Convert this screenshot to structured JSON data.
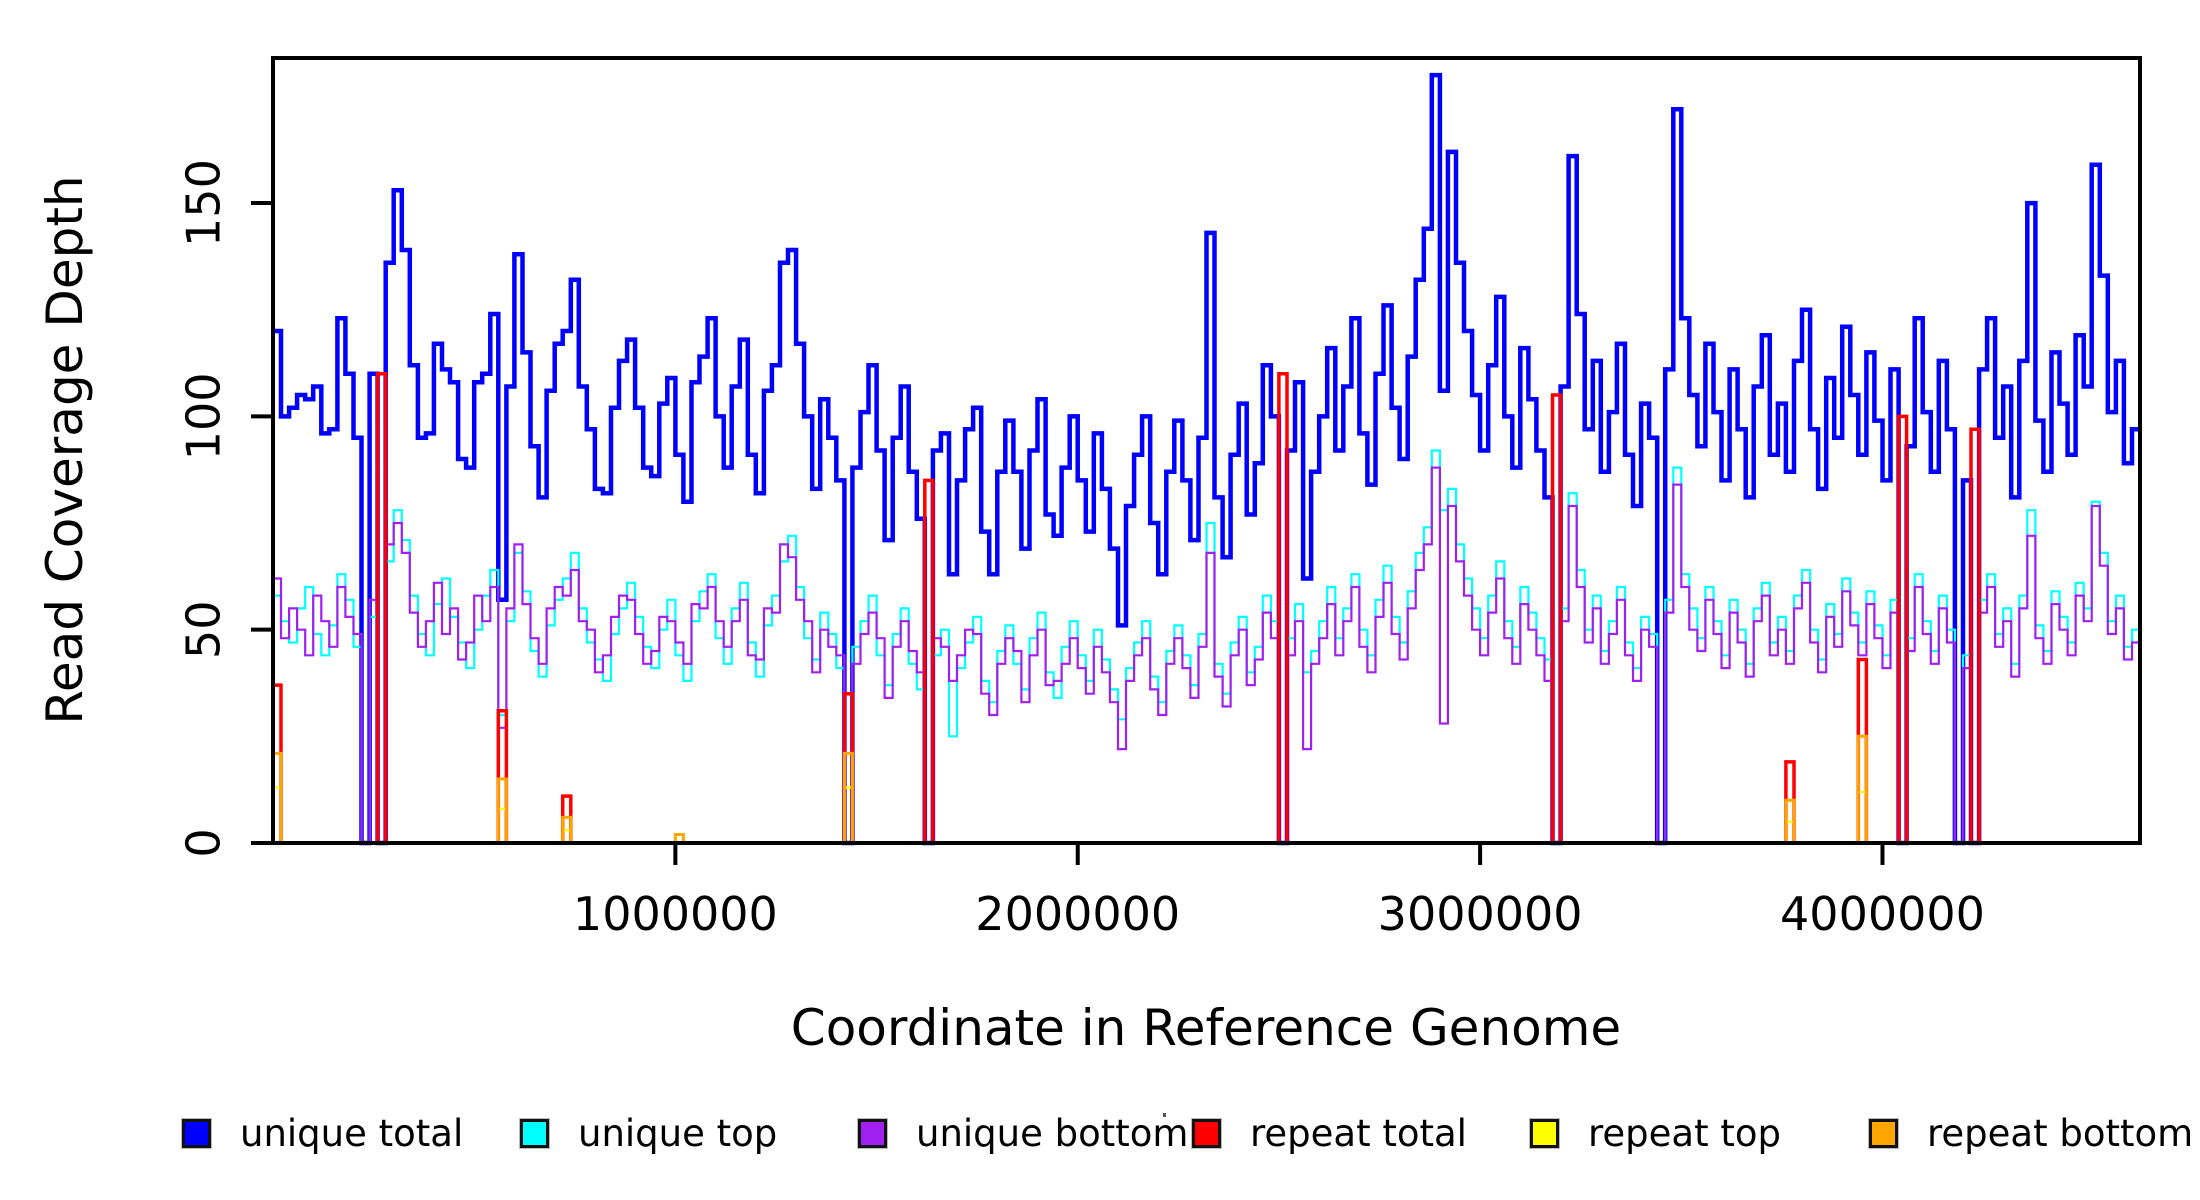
{
  "chart_data": {
    "type": "line",
    "subtype": "step",
    "title": "",
    "xlabel": "Coordinate in Reference Genome",
    "ylabel": "Read Coverage Depth",
    "xlim": [
      0,
      4640000
    ],
    "ylim": [
      0,
      184
    ],
    "bin_size": 20000,
    "n_bins": 232,
    "grid": false,
    "legend_position": "bottom",
    "x_ticks": [
      1000000,
      2000000,
      3000000,
      4000000
    ],
    "x_tick_labels": [
      "1000000",
      "2000000",
      "3000000",
      "4000000"
    ],
    "y_ticks": [
      0,
      50,
      100,
      150
    ],
    "y_tick_labels": [
      "0",
      "50",
      "100",
      "150"
    ],
    "series": [
      {
        "name": "unique total",
        "color": "#0000ff",
        "width": 4.5,
        "values": [
          120,
          100,
          102,
          105,
          104,
          107,
          96,
          97,
          123,
          110,
          95,
          0,
          110,
          0,
          136,
          153,
          139,
          112,
          95,
          96,
          117,
          111,
          108,
          90,
          88,
          108,
          110,
          124,
          57,
          107,
          138,
          115,
          93,
          81,
          106,
          117,
          120,
          132,
          107,
          97,
          83,
          82,
          102,
          113,
          118,
          102,
          88,
          86,
          103,
          109,
          91,
          80,
          108,
          114,
          123,
          100,
          88,
          107,
          118,
          91,
          82,
          106,
          112,
          136,
          139,
          117,
          100,
          83,
          104,
          95,
          85,
          0,
          88,
          101,
          112,
          92,
          71,
          95,
          107,
          87,
          76,
          0,
          92,
          96,
          63,
          85,
          97,
          102,
          73,
          63,
          87,
          99,
          87,
          69,
          92,
          104,
          77,
          72,
          88,
          100,
          85,
          73,
          96,
          83,
          69,
          51,
          79,
          91,
          100,
          75,
          63,
          87,
          99,
          85,
          71,
          95,
          143,
          81,
          67,
          91,
          103,
          77,
          89,
          112,
          100,
          0,
          92,
          108,
          62,
          87,
          100,
          116,
          92,
          107,
          123,
          96,
          84,
          110,
          126,
          102,
          90,
          114,
          132,
          144,
          180,
          106,
          162,
          136,
          120,
          105,
          92,
          112,
          128,
          100,
          88,
          116,
          104,
          92,
          81,
          0,
          107,
          161,
          124,
          97,
          113,
          87,
          101,
          117,
          91,
          79,
          103,
          95,
          0,
          111,
          172,
          123,
          105,
          93,
          117,
          101,
          85,
          111,
          97,
          81,
          107,
          119,
          91,
          103,
          87,
          113,
          125,
          97,
          83,
          109,
          95,
          121,
          105,
          91,
          115,
          99,
          85,
          111,
          0,
          93,
          123,
          101,
          87,
          113,
          97,
          0,
          85,
          0,
          111,
          123,
          95,
          107,
          81,
          113,
          150,
          99,
          87,
          115,
          103,
          91,
          119,
          107,
          159,
          133,
          101,
          113,
          89,
          97
        ]
      },
      {
        "name": "unique top",
        "color": "#00ffff",
        "width": 2.2,
        "values": [
          58,
          52,
          47,
          55,
          60,
          49,
          44,
          51,
          63,
          57,
          46,
          0,
          53,
          0,
          66,
          78,
          71,
          58,
          49,
          44,
          56,
          62,
          53,
          47,
          41,
          50,
          58,
          64,
          30,
          52,
          68,
          59,
          45,
          39,
          51,
          57,
          62,
          68,
          55,
          47,
          43,
          38,
          49,
          55,
          61,
          53,
          46,
          41,
          50,
          57,
          44,
          38,
          52,
          59,
          63,
          48,
          42,
          55,
          61,
          47,
          39,
          51,
          58,
          66,
          72,
          60,
          48,
          43,
          54,
          49,
          41,
          0,
          46,
          52,
          58,
          44,
          37,
          49,
          55,
          42,
          36,
          0,
          44,
          50,
          25,
          41,
          47,
          53,
          38,
          33,
          45,
          51,
          42,
          36,
          48,
          54,
          40,
          34,
          46,
          52,
          44,
          38,
          50,
          43,
          36,
          29,
          41,
          47,
          52,
          39,
          33,
          45,
          51,
          44,
          37,
          49,
          75,
          42,
          35,
          47,
          53,
          40,
          46,
          58,
          52,
          0,
          48,
          56,
          40,
          45,
          52,
          60,
          48,
          55,
          63,
          50,
          44,
          57,
          65,
          53,
          47,
          59,
          68,
          74,
          92,
          78,
          83,
          70,
          62,
          55,
          48,
          58,
          66,
          52,
          46,
          60,
          54,
          48,
          43,
          0,
          55,
          82,
          64,
          50,
          58,
          45,
          52,
          60,
          47,
          41,
          53,
          49,
          0,
          57,
          88,
          63,
          55,
          48,
          60,
          52,
          44,
          57,
          50,
          42,
          55,
          61,
          47,
          53,
          45,
          58,
          64,
          50,
          43,
          56,
          49,
          62,
          54,
          47,
          59,
          51,
          44,
          57,
          0,
          48,
          63,
          52,
          45,
          58,
          50,
          0,
          44,
          0,
          57,
          63,
          49,
          55,
          42,
          58,
          78,
          51,
          45,
          59,
          53,
          47,
          61,
          55,
          80,
          68,
          52,
          58,
          46,
          50
        ]
      },
      {
        "name": "unique bottom",
        "color": "#a020f0",
        "width": 2.2,
        "values": [
          62,
          48,
          55,
          50,
          44,
          58,
          52,
          46,
          60,
          53,
          49,
          0,
          57,
          0,
          70,
          75,
          68,
          54,
          46,
          52,
          61,
          49,
          55,
          43,
          47,
          58,
          52,
          60,
          27,
          55,
          70,
          56,
          48,
          42,
          55,
          60,
          58,
          64,
          52,
          50,
          40,
          44,
          53,
          58,
          57,
          49,
          42,
          45,
          53,
          52,
          47,
          42,
          56,
          55,
          60,
          52,
          46,
          52,
          57,
          44,
          43,
          55,
          54,
          70,
          67,
          57,
          52,
          40,
          50,
          46,
          44,
          0,
          42,
          49,
          54,
          48,
          34,
          46,
          52,
          45,
          40,
          0,
          48,
          46,
          38,
          44,
          50,
          49,
          35,
          30,
          42,
          48,
          45,
          33,
          44,
          50,
          37,
          38,
          42,
          48,
          41,
          35,
          46,
          40,
          33,
          22,
          38,
          44,
          48,
          36,
          30,
          42,
          48,
          41,
          34,
          46,
          68,
          39,
          32,
          44,
          50,
          37,
          43,
          54,
          48,
          0,
          44,
          52,
          22,
          42,
          48,
          56,
          44,
          52,
          60,
          46,
          40,
          53,
          61,
          49,
          43,
          55,
          64,
          70,
          88,
          28,
          79,
          66,
          58,
          50,
          44,
          54,
          62,
          48,
          42,
          56,
          50,
          44,
          38,
          0,
          52,
          79,
          60,
          47,
          55,
          42,
          49,
          57,
          44,
          38,
          50,
          46,
          0,
          54,
          84,
          60,
          50,
          45,
          57,
          49,
          41,
          54,
          47,
          39,
          52,
          58,
          44,
          50,
          42,
          55,
          61,
          47,
          40,
          53,
          46,
          59,
          51,
          44,
          56,
          48,
          41,
          54,
          0,
          45,
          60,
          49,
          42,
          55,
          47,
          0,
          41,
          0,
          54,
          60,
          46,
          52,
          39,
          55,
          72,
          48,
          42,
          56,
          50,
          44,
          58,
          52,
          79,
          65,
          49,
          55,
          43,
          47
        ]
      },
      {
        "name": "repeat total",
        "color": "#ff0000",
        "width": 3.5,
        "baseline": 0,
        "spikes": [
          {
            "bin": 0,
            "value": 37
          },
          {
            "bin": 13,
            "value": 110
          },
          {
            "bin": 28,
            "value": 31
          },
          {
            "bin": 36,
            "value": 11
          },
          {
            "bin": 71,
            "value": 35
          },
          {
            "bin": 81,
            "value": 85
          },
          {
            "bin": 125,
            "value": 110
          },
          {
            "bin": 159,
            "value": 105
          },
          {
            "bin": 188,
            "value": 19
          },
          {
            "bin": 197,
            "value": 43
          },
          {
            "bin": 202,
            "value": 100
          },
          {
            "bin": 211,
            "value": 97
          }
        ]
      },
      {
        "name": "repeat top",
        "color": "#ffff00",
        "width": 2.2,
        "baseline": 0,
        "spikes": [
          {
            "bin": 0,
            "value": 13
          },
          {
            "bin": 28,
            "value": 8
          },
          {
            "bin": 36,
            "value": 3
          },
          {
            "bin": 71,
            "value": 13
          },
          {
            "bin": 188,
            "value": 5
          },
          {
            "bin": 197,
            "value": 12
          }
        ]
      },
      {
        "name": "repeat bottom",
        "color": "#ffa500",
        "width": 3,
        "baseline": 0,
        "spikes": [
          {
            "bin": 0,
            "value": 21
          },
          {
            "bin": 28,
            "value": 15
          },
          {
            "bin": 36,
            "value": 6
          },
          {
            "bin": 50,
            "value": 2
          },
          {
            "bin": 71,
            "value": 21
          },
          {
            "bin": 188,
            "value": 10
          },
          {
            "bin": 197,
            "value": 25
          }
        ]
      }
    ]
  }
}
